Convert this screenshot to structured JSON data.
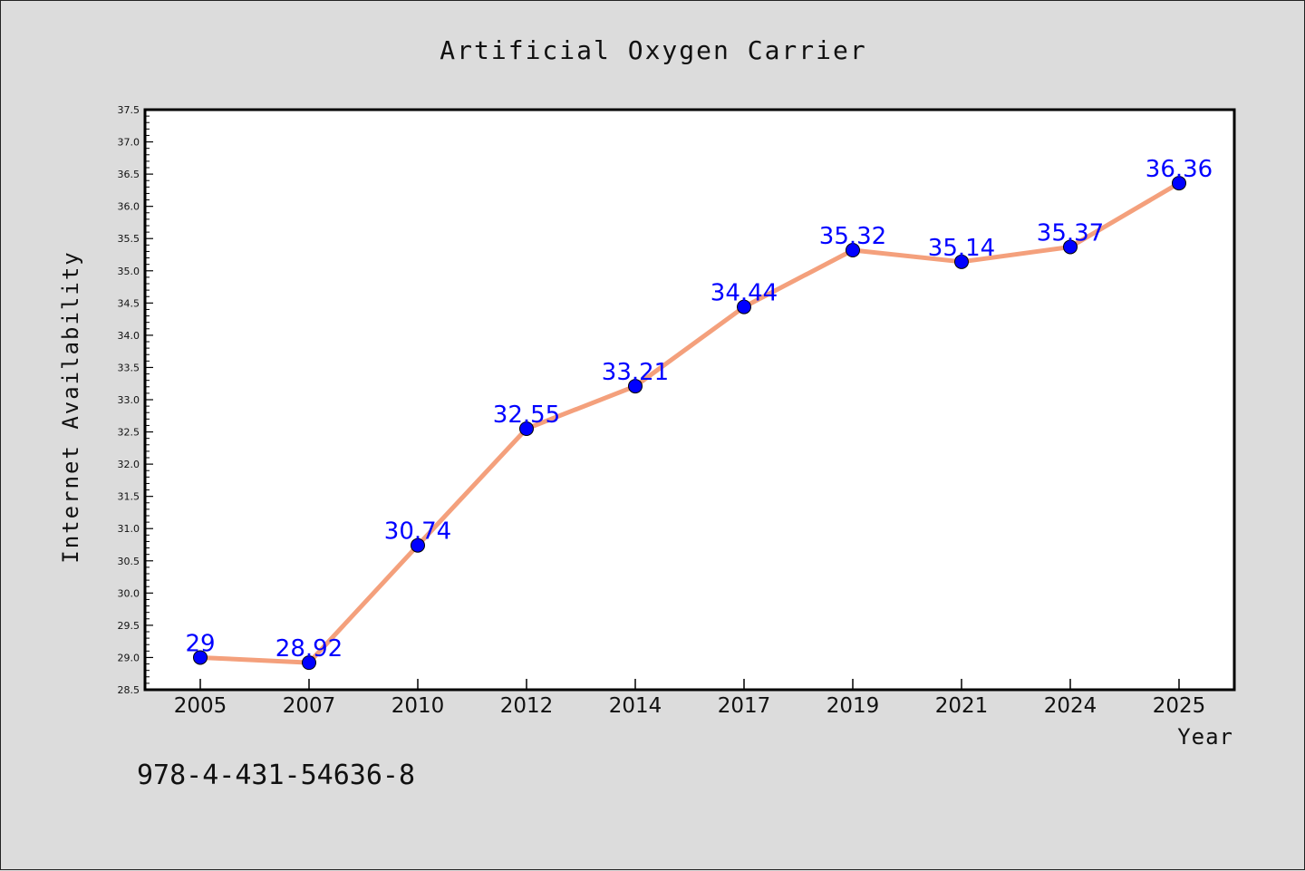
{
  "chart_data": {
    "type": "line",
    "title": "Artificial Oxygen Carrier",
    "xlabel": "Year",
    "ylabel": "Internet Availability",
    "categories": [
      "2005",
      "2007",
      "2010",
      "2012",
      "2014",
      "2017",
      "2019",
      "2021",
      "2024",
      "2025"
    ],
    "series": [
      {
        "values": [
          29,
          28.92,
          30.74,
          32.55,
          33.21,
          34.44,
          35.32,
          35.14,
          35.37,
          36.36
        ],
        "data_labels": [
          "29",
          "28.92",
          "30.74",
          "32.55",
          "33.21",
          "34.44",
          "35.32",
          "35.14",
          "35.37",
          "36.36"
        ]
      }
    ],
    "ylim": [
      28.5,
      37.5
    ],
    "y_ticks": [
      "28.5",
      "29.0",
      "29.5",
      "30.0",
      "30.5",
      "31.0",
      "31.5",
      "32.0",
      "32.5",
      "33.0",
      "33.5",
      "34.0",
      "34.5",
      "35.0",
      "35.5",
      "36.0",
      "36.5",
      "37.0",
      "37.5"
    ],
    "grid": false,
    "legend": "none",
    "colors": {
      "line": "#f4a07c",
      "marker": "#0000ff",
      "label": "#0000ff",
      "background": "#dcdcdc",
      "plot_background": "#ffffff"
    }
  },
  "footer": {
    "isbn": "978-4-431-54636-8"
  }
}
